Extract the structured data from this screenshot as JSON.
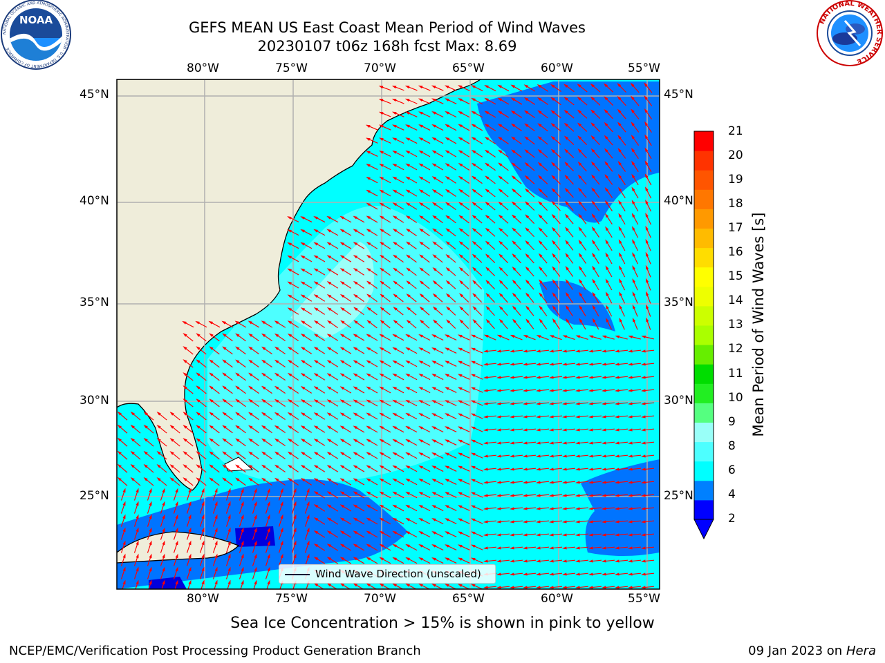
{
  "header": {
    "title_line1": "GEFS MEAN US East Coast Mean Period of Wind Waves",
    "title_line2": "20230107 t06z 168h fcst   Max: 8.69",
    "noaa_logo_text": "NOAA",
    "noaa_ring_text": "NATIONAL OCEANIC AND ATMOSPHERIC ADMINISTRATION · U.S. DEPARTMENT OF COMMERCE",
    "nws_ring_text": "NATIONAL WEATHER SERVICE"
  },
  "map": {
    "lon_labels": [
      "80°W",
      "75°W",
      "70°W",
      "65°W",
      "60°W",
      "55°W"
    ],
    "lat_labels": [
      "45°N",
      "40°N",
      "35°N",
      "30°N",
      "25°N"
    ],
    "land_color": "#efedda",
    "ocean_colors": {
      "2-4": "#0074ff",
      "4-6": "#00ffff",
      "6-8": "#4dffff",
      "8-9": "#9bfff9",
      "0-2": "#0000dd"
    },
    "arrow_color": "#ff0000",
    "legend_label": "Wind Wave Direction (unscaled)"
  },
  "colorbar": {
    "label": "Mean Period of Wind Waves [s]",
    "ticks": [
      "21",
      "20",
      "19",
      "18",
      "17",
      "16",
      "15",
      "14",
      "13",
      "12",
      "11",
      "10",
      "9",
      "8",
      "6",
      "4",
      "2"
    ],
    "colors": [
      "#0000ff",
      "#0080ff",
      "#00ffff",
      "#4dffff",
      "#99fff8",
      "#55ff80",
      "#22ee22",
      "#00dd00",
      "#66ee00",
      "#aaff00",
      "#ccff00",
      "#eeff00",
      "#ffff00",
      "#ffdd00",
      "#ffbb00",
      "#ff9900",
      "#ff7700",
      "#ff5500",
      "#ff3300",
      "#ff0000"
    ]
  },
  "footer": {
    "note": "Sea Ice Concentration > 15% is shown in pink to yellow",
    "credit_left": "NCEP/EMC/Verification Post Processing Product Generation Branch",
    "credit_right_date": "09 Jan 2023 on",
    "credit_right_host": "Hera"
  }
}
